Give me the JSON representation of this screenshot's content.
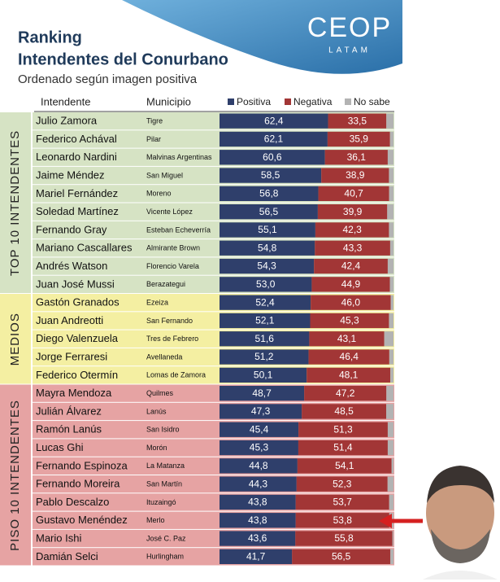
{
  "header": {
    "title": "Ranking",
    "title2": "Intendentes del Conurbano",
    "subtitle": "Ordenado según imagen positiva",
    "logo": "CEOP",
    "logo_sub": "LATAM"
  },
  "legend": [
    {
      "name": "Positiva",
      "color": "#2f3f6b"
    },
    {
      "name": "Negativa",
      "color": "#a23636"
    },
    {
      "name": "No sabe",
      "color": "#b3b3b3"
    }
  ],
  "table": {
    "columns": [
      "Intendente",
      "Municipio"
    ],
    "xlim": [
      0,
      100
    ],
    "groups": [
      {
        "label": "TOP 10 INTENDENTES",
        "color": "#d6e3c4",
        "rows": [
          {
            "name": "Julio Zamora",
            "municipio": "Tigre",
            "positiva": 62.4,
            "positiva_label": "62,4",
            "negativa": 33.5,
            "negativa_label": "33,5",
            "no_sabe": 4.1
          },
          {
            "name": "Federico Achával",
            "municipio": "Pilar",
            "positiva": 62.1,
            "positiva_label": "62,1",
            "negativa": 35.9,
            "negativa_label": "35,9",
            "no_sabe": 2.0
          },
          {
            "name": "Leonardo Nardini",
            "municipio": "Malvinas Argentinas",
            "positiva": 60.6,
            "positiva_label": "60,6",
            "negativa": 36.1,
            "negativa_label": "36,1",
            "no_sabe": 3.3
          },
          {
            "name": "Jaime Méndez",
            "municipio": "San Miguel",
            "positiva": 58.5,
            "positiva_label": "58,5",
            "negativa": 38.9,
            "negativa_label": "38,9",
            "no_sabe": 2.6
          },
          {
            "name": "Mariel Fernández",
            "municipio": "Moreno",
            "positiva": 56.8,
            "positiva_label": "56,8",
            "negativa": 40.7,
            "negativa_label": "40,7",
            "no_sabe": 2.5
          },
          {
            "name": "Soledad Martínez",
            "municipio": "Vicente López",
            "positiva": 56.5,
            "positiva_label": "56,5",
            "negativa": 39.9,
            "negativa_label": "39,9",
            "no_sabe": 3.6
          },
          {
            "name": "Fernando Gray",
            "municipio": "Esteban Echeverría",
            "positiva": 55.1,
            "positiva_label": "55,1",
            "negativa": 42.3,
            "negativa_label": "42,3",
            "no_sabe": 2.6
          },
          {
            "name": "Mariano Cascallares",
            "municipio": "Almirante Brown",
            "positiva": 54.8,
            "positiva_label": "54,8",
            "negativa": 43.3,
            "negativa_label": "43,3",
            "no_sabe": 1.9
          },
          {
            "name": "Andrés Watson",
            "municipio": "Florencio Varela",
            "positiva": 54.3,
            "positiva_label": "54,3",
            "negativa": 42.4,
            "negativa_label": "42,4",
            "no_sabe": 3.3
          },
          {
            "name": "Juan José Mussi",
            "municipio": "Berazategui",
            "positiva": 53.0,
            "positiva_label": "53,0",
            "negativa": 44.9,
            "negativa_label": "44,9",
            "no_sabe": 2.1
          }
        ]
      },
      {
        "label": "MEDIOS",
        "color": "#f4efa2",
        "rows": [
          {
            "name": "Gastón Granados",
            "municipio": "Ezeiza",
            "positiva": 52.4,
            "positiva_label": "52,4",
            "negativa": 46.0,
            "negativa_label": "46,0",
            "no_sabe": 1.6
          },
          {
            "name": "Juan Andreotti",
            "municipio": "San Fernando",
            "positiva": 52.1,
            "positiva_label": "52,1",
            "negativa": 45.3,
            "negativa_label": "45,3",
            "no_sabe": 2.6
          },
          {
            "name": "Diego Valenzuela",
            "municipio": "Tres de Febrero",
            "positiva": 51.6,
            "positiva_label": "51,6",
            "negativa": 43.1,
            "negativa_label": "43,1",
            "no_sabe": 5.3
          },
          {
            "name": "Jorge Ferraresi",
            "municipio": "Avellaneda",
            "positiva": 51.2,
            "positiva_label": "51,2",
            "negativa": 46.4,
            "negativa_label": "46,4",
            "no_sabe": 2.4
          },
          {
            "name": "Federico Otermín",
            "municipio": "Lomas de Zamora",
            "positiva": 50.1,
            "positiva_label": "50,1",
            "negativa": 48.1,
            "negativa_label": "48,1",
            "no_sabe": 1.8
          }
        ]
      },
      {
        "label": "PISO 10 INTENDENTES",
        "color": "#e6a3a3",
        "rows": [
          {
            "name": "Mayra Mendoza",
            "municipio": "Quilmes",
            "positiva": 48.7,
            "positiva_label": "48,7",
            "negativa": 47.2,
            "negativa_label": "47,2",
            "no_sabe": 4.1
          },
          {
            "name": "Julián Álvarez",
            "municipio": "Lanús",
            "positiva": 47.3,
            "positiva_label": "47,3",
            "negativa": 48.5,
            "negativa_label": "48,5",
            "no_sabe": 4.2
          },
          {
            "name": "Ramón Lanús",
            "municipio": "San Isidro",
            "positiva": 45.4,
            "positiva_label": "45,4",
            "negativa": 51.3,
            "negativa_label": "51,3",
            "no_sabe": 3.3
          },
          {
            "name": "Lucas Ghi",
            "municipio": "Morón",
            "positiva": 45.3,
            "positiva_label": "45,3",
            "negativa": 51.4,
            "negativa_label": "51,4",
            "no_sabe": 3.3
          },
          {
            "name": "Fernando Espinoza",
            "municipio": "La Matanza",
            "positiva": 44.8,
            "positiva_label": "44,8",
            "negativa": 54.1,
            "negativa_label": "54,1",
            "no_sabe": 1.1
          },
          {
            "name": "Fernando Moreira",
            "municipio": "San Martín",
            "positiva": 44.3,
            "positiva_label": "44,3",
            "negativa": 52.3,
            "negativa_label": "52,3",
            "no_sabe": 3.4
          },
          {
            "name": "Pablo Descalzo",
            "municipio": "Ituzaingó",
            "positiva": 43.8,
            "positiva_label": "43,8",
            "negativa": 53.7,
            "negativa_label": "53,7",
            "no_sabe": 2.5
          },
          {
            "name": "Gustavo Menéndez",
            "municipio": "Merlo",
            "positiva": 43.8,
            "positiva_label": "43,8",
            "negativa": 53.8,
            "negativa_label": "53,8",
            "no_sabe": 2.4
          },
          {
            "name": "Mario Ishi",
            "municipio": "José C. Paz",
            "positiva": 43.6,
            "positiva_label": "43,6",
            "negativa": 55.8,
            "negativa_label": "55,8",
            "no_sabe": 0.6
          },
          {
            "name": "Damián Selci",
            "municipio": "Hurlingham",
            "positiva": 41.7,
            "positiva_label": "41,7",
            "negativa": 56.5,
            "negativa_label": "56,5",
            "no_sabe": 1.8
          }
        ]
      }
    ]
  }
}
